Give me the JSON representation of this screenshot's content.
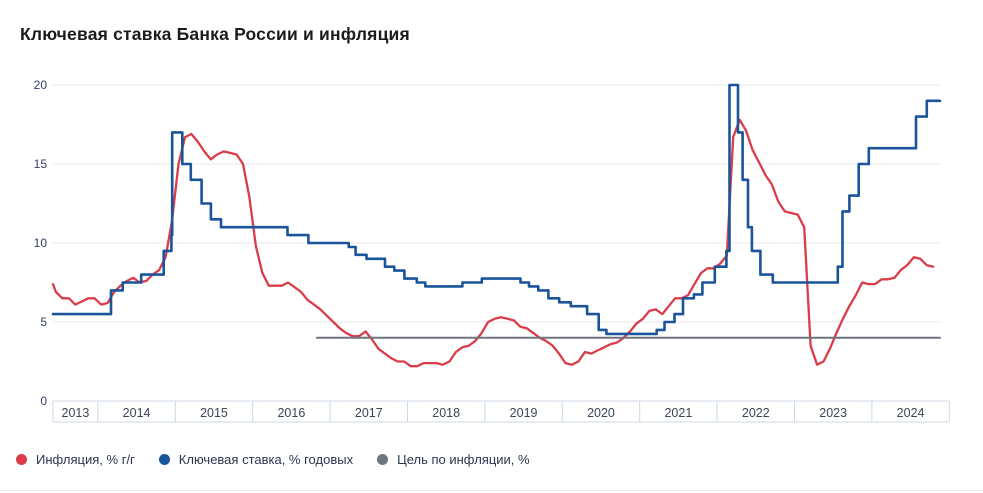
{
  "title": "Ключевая ставка Банка России и инфляция",
  "colors": {
    "inflation": "#da3c4a",
    "key_rate": "#1a549b",
    "target": "#6e757e",
    "grid": "#e8e8e8",
    "axis_band": "#ccd8e4",
    "y_label": "#2f3f66",
    "x_label": "#3a4558",
    "title": "#1b1b1b",
    "legend_text": "#2a3550"
  },
  "chart_data": {
    "type": "line",
    "title": "Ключевая ставка Банка России и инфляция",
    "xlabel": "",
    "ylabel": "",
    "grid": "horizontal",
    "legend_position": "bottom-left",
    "y_axis": {
      "ticks": [
        0,
        5,
        10,
        15,
        20
      ],
      "range": [
        0,
        20
      ]
    },
    "x_axis": {
      "start": 2013.42,
      "end": 2024.88,
      "band_right": 2025.0,
      "year_labels": [
        "2013",
        "2014",
        "2015",
        "2016",
        "2017",
        "2018",
        "2019",
        "2020",
        "2021",
        "2022",
        "2023",
        "2024"
      ]
    },
    "series": [
      {
        "name": "Инфляция, % г/г",
        "type": "line",
        "color": "#da3c4a",
        "points": [
          [
            2013.42,
            7.4
          ],
          [
            2013.458,
            6.9
          ],
          [
            2013.542,
            6.5
          ],
          [
            2013.625,
            6.5
          ],
          [
            2013.708,
            6.1
          ],
          [
            2013.792,
            6.3
          ],
          [
            2013.875,
            6.5
          ],
          [
            2013.958,
            6.5
          ],
          [
            2014.042,
            6.1
          ],
          [
            2014.125,
            6.2
          ],
          [
            2014.208,
            6.9
          ],
          [
            2014.292,
            7.3
          ],
          [
            2014.375,
            7.6
          ],
          [
            2014.458,
            7.8
          ],
          [
            2014.542,
            7.5
          ],
          [
            2014.625,
            7.6
          ],
          [
            2014.708,
            8.0
          ],
          [
            2014.792,
            8.3
          ],
          [
            2014.875,
            9.1
          ],
          [
            2014.958,
            11.4
          ],
          [
            2015.042,
            15.0
          ],
          [
            2015.125,
            16.7
          ],
          [
            2015.208,
            16.9
          ],
          [
            2015.292,
            16.4
          ],
          [
            2015.375,
            15.8
          ],
          [
            2015.458,
            15.3
          ],
          [
            2015.542,
            15.6
          ],
          [
            2015.625,
            15.8
          ],
          [
            2015.708,
            15.7
          ],
          [
            2015.792,
            15.6
          ],
          [
            2015.875,
            15.0
          ],
          [
            2015.958,
            12.9
          ],
          [
            2016.042,
            9.8
          ],
          [
            2016.125,
            8.1
          ],
          [
            2016.208,
            7.3
          ],
          [
            2016.292,
            7.3
          ],
          [
            2016.375,
            7.3
          ],
          [
            2016.458,
            7.5
          ],
          [
            2016.542,
            7.2
          ],
          [
            2016.625,
            6.9
          ],
          [
            2016.708,
            6.4
          ],
          [
            2016.792,
            6.1
          ],
          [
            2016.875,
            5.8
          ],
          [
            2016.958,
            5.4
          ],
          [
            2017.042,
            5.0
          ],
          [
            2017.125,
            4.6
          ],
          [
            2017.208,
            4.3
          ],
          [
            2017.292,
            4.1
          ],
          [
            2017.375,
            4.1
          ],
          [
            2017.458,
            4.4
          ],
          [
            2017.542,
            3.9
          ],
          [
            2017.625,
            3.3
          ],
          [
            2017.708,
            3.0
          ],
          [
            2017.792,
            2.7
          ],
          [
            2017.875,
            2.5
          ],
          [
            2017.958,
            2.5
          ],
          [
            2018.042,
            2.2
          ],
          [
            2018.125,
            2.2
          ],
          [
            2018.208,
            2.4
          ],
          [
            2018.292,
            2.4
          ],
          [
            2018.375,
            2.4
          ],
          [
            2018.458,
            2.3
          ],
          [
            2018.542,
            2.5
          ],
          [
            2018.625,
            3.1
          ],
          [
            2018.708,
            3.4
          ],
          [
            2018.792,
            3.5
          ],
          [
            2018.875,
            3.8
          ],
          [
            2018.958,
            4.3
          ],
          [
            2019.042,
            5.0
          ],
          [
            2019.125,
            5.2
          ],
          [
            2019.208,
            5.3
          ],
          [
            2019.292,
            5.2
          ],
          [
            2019.375,
            5.1
          ],
          [
            2019.458,
            4.7
          ],
          [
            2019.542,
            4.6
          ],
          [
            2019.625,
            4.3
          ],
          [
            2019.708,
            4.0
          ],
          [
            2019.792,
            3.8
          ],
          [
            2019.875,
            3.5
          ],
          [
            2019.958,
            3.0
          ],
          [
            2020.042,
            2.4
          ],
          [
            2020.125,
            2.3
          ],
          [
            2020.208,
            2.5
          ],
          [
            2020.292,
            3.1
          ],
          [
            2020.375,
            3.0
          ],
          [
            2020.458,
            3.2
          ],
          [
            2020.542,
            3.4
          ],
          [
            2020.625,
            3.6
          ],
          [
            2020.708,
            3.7
          ],
          [
            2020.792,
            4.0
          ],
          [
            2020.875,
            4.4
          ],
          [
            2020.958,
            4.9
          ],
          [
            2021.042,
            5.2
          ],
          [
            2021.125,
            5.7
          ],
          [
            2021.208,
            5.8
          ],
          [
            2021.292,
            5.5
          ],
          [
            2021.375,
            6.0
          ],
          [
            2021.458,
            6.5
          ],
          [
            2021.542,
            6.5
          ],
          [
            2021.625,
            6.7
          ],
          [
            2021.708,
            7.4
          ],
          [
            2021.792,
            8.1
          ],
          [
            2021.875,
            8.4
          ],
          [
            2021.958,
            8.4
          ],
          [
            2022.042,
            8.7
          ],
          [
            2022.125,
            9.2
          ],
          [
            2022.208,
            16.7
          ],
          [
            2022.292,
            17.8
          ],
          [
            2022.375,
            17.1
          ],
          [
            2022.458,
            15.9
          ],
          [
            2022.542,
            15.1
          ],
          [
            2022.625,
            14.3
          ],
          [
            2022.708,
            13.7
          ],
          [
            2022.792,
            12.6
          ],
          [
            2022.875,
            12.0
          ],
          [
            2022.958,
            11.9
          ],
          [
            2023.042,
            11.8
          ],
          [
            2023.125,
            11.0
          ],
          [
            2023.208,
            3.5
          ],
          [
            2023.292,
            2.3
          ],
          [
            2023.375,
            2.5
          ],
          [
            2023.458,
            3.3
          ],
          [
            2023.542,
            4.3
          ],
          [
            2023.625,
            5.2
          ],
          [
            2023.708,
            6.0
          ],
          [
            2023.792,
            6.7
          ],
          [
            2023.875,
            7.5
          ],
          [
            2023.958,
            7.4
          ],
          [
            2024.042,
            7.4
          ],
          [
            2024.125,
            7.7
          ],
          [
            2024.208,
            7.7
          ],
          [
            2024.292,
            7.8
          ],
          [
            2024.375,
            8.3
          ],
          [
            2024.458,
            8.6
          ],
          [
            2024.542,
            9.1
          ],
          [
            2024.625,
            9.0
          ],
          [
            2024.708,
            8.6
          ],
          [
            2024.792,
            8.5
          ]
        ]
      },
      {
        "name": "Ключевая ставка, % годовых",
        "type": "step",
        "color": "#1a549b",
        "points": [
          [
            2013.42,
            5.5
          ],
          [
            2014.17,
            7.0
          ],
          [
            2014.32,
            7.5
          ],
          [
            2014.56,
            8.0
          ],
          [
            2014.85,
            9.5
          ],
          [
            2014.95,
            10.5
          ],
          [
            2014.96,
            17.0
          ],
          [
            2015.09,
            15.0
          ],
          [
            2015.2,
            14.0
          ],
          [
            2015.34,
            12.5
          ],
          [
            2015.46,
            11.5
          ],
          [
            2015.59,
            11.0
          ],
          [
            2016.45,
            10.5
          ],
          [
            2016.72,
            10.0
          ],
          [
            2017.24,
            9.75
          ],
          [
            2017.33,
            9.25
          ],
          [
            2017.47,
            9.0
          ],
          [
            2017.71,
            8.5
          ],
          [
            2017.83,
            8.25
          ],
          [
            2017.96,
            7.75
          ],
          [
            2018.12,
            7.5
          ],
          [
            2018.23,
            7.25
          ],
          [
            2018.71,
            7.5
          ],
          [
            2018.96,
            7.75
          ],
          [
            2019.46,
            7.5
          ],
          [
            2019.57,
            7.25
          ],
          [
            2019.69,
            7.0
          ],
          [
            2019.82,
            6.5
          ],
          [
            2019.96,
            6.25
          ],
          [
            2020.11,
            6.0
          ],
          [
            2020.32,
            5.5
          ],
          [
            2020.47,
            4.5
          ],
          [
            2020.57,
            4.25
          ],
          [
            2021.22,
            4.5
          ],
          [
            2021.32,
            5.0
          ],
          [
            2021.45,
            5.5
          ],
          [
            2021.56,
            6.5
          ],
          [
            2021.7,
            6.75
          ],
          [
            2021.81,
            7.5
          ],
          [
            2021.97,
            8.5
          ],
          [
            2022.12,
            9.5
          ],
          [
            2022.16,
            20.0
          ],
          [
            2022.27,
            17.0
          ],
          [
            2022.33,
            14.0
          ],
          [
            2022.4,
            11.0
          ],
          [
            2022.45,
            9.5
          ],
          [
            2022.56,
            8.0
          ],
          [
            2022.72,
            7.5
          ],
          [
            2023.56,
            8.5
          ],
          [
            2023.62,
            12.0
          ],
          [
            2023.71,
            13.0
          ],
          [
            2023.83,
            15.0
          ],
          [
            2023.96,
            16.0
          ],
          [
            2024.57,
            18.0
          ],
          [
            2024.71,
            19.0
          ]
        ]
      },
      {
        "name": "Цель по инфляции, %",
        "type": "line",
        "color": "#6e757e",
        "points": [
          [
            2016.83,
            4.0
          ],
          [
            2024.88,
            4.0
          ]
        ]
      }
    ]
  }
}
